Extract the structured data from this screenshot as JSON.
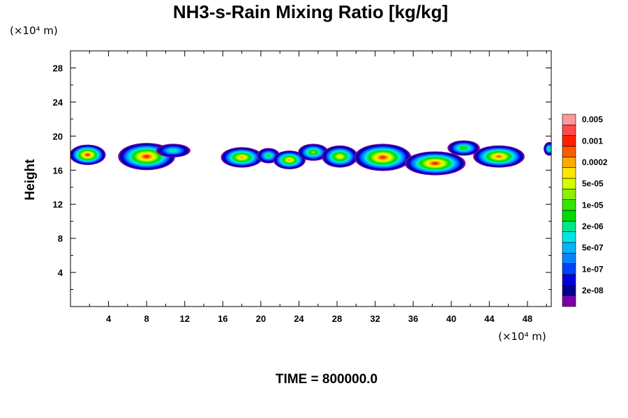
{
  "chart_data": {
    "type": "heatmap",
    "title": "NH3-s-Rain Mixing Ratio [kg/kg]",
    "ylabel": "Height",
    "x_unit": "(×10⁴ m)",
    "y_unit": "(×10⁴ m)",
    "footer": "TIME = 800000.0",
    "xlim": [
      0,
      50.5
    ],
    "ylim": [
      0,
      30
    ],
    "x_ticks": [
      4,
      8,
      12,
      16,
      20,
      24,
      28,
      32,
      36,
      40,
      44,
      48
    ],
    "y_ticks": [
      4,
      8,
      12,
      16,
      20,
      24,
      28
    ],
    "colorbar": {
      "colors": [
        "#7b00a8",
        "#00008f",
        "#0000dc",
        "#0042ff",
        "#0a82ff",
        "#00b4ff",
        "#00e6e6",
        "#00e68c",
        "#00dc00",
        "#32e600",
        "#8cf000",
        "#d2ff00",
        "#ffe600",
        "#ffaa00",
        "#ff5a00",
        "#ff1e00",
        "#ff4b4b",
        "#ff9999"
      ],
      "labels": [
        "2e-08",
        "1e-07",
        "5e-07",
        "2e-06",
        "1e-05",
        "5e-05",
        "0.0002",
        "0.001",
        "0.005"
      ]
    },
    "cloud_blobs": [
      {
        "cx": 1.8,
        "cy": 17.8,
        "rx": 1.9,
        "ry": 1.2,
        "level": 15
      },
      {
        "cx": 8.0,
        "cy": 17.6,
        "rx": 3.0,
        "ry": 1.6,
        "level": 15
      },
      {
        "cx": 10.8,
        "cy": 18.3,
        "rx": 1.8,
        "ry": 0.8,
        "level": 7
      },
      {
        "cx": 18.0,
        "cy": 17.5,
        "rx": 2.2,
        "ry": 1.2,
        "level": 13
      },
      {
        "cx": 20.8,
        "cy": 17.7,
        "rx": 1.2,
        "ry": 0.9,
        "level": 8
      },
      {
        "cx": 23.0,
        "cy": 17.2,
        "rx": 1.7,
        "ry": 1.1,
        "level": 13
      },
      {
        "cx": 25.5,
        "cy": 18.1,
        "rx": 1.6,
        "ry": 1.0,
        "level": 10
      },
      {
        "cx": 28.3,
        "cy": 17.6,
        "rx": 1.9,
        "ry": 1.3,
        "level": 12
      },
      {
        "cx": 32.8,
        "cy": 17.5,
        "rx": 3.0,
        "ry": 1.6,
        "level": 15
      },
      {
        "cx": 38.3,
        "cy": 16.8,
        "rx": 3.2,
        "ry": 1.4,
        "level": 15
      },
      {
        "cx": 41.3,
        "cy": 18.6,
        "rx": 1.7,
        "ry": 0.9,
        "level": 9
      },
      {
        "cx": 45.0,
        "cy": 17.6,
        "rx": 2.7,
        "ry": 1.3,
        "level": 14
      },
      {
        "cx": 50.3,
        "cy": 18.5,
        "rx": 0.6,
        "ry": 0.8,
        "level": 8
      }
    ]
  }
}
